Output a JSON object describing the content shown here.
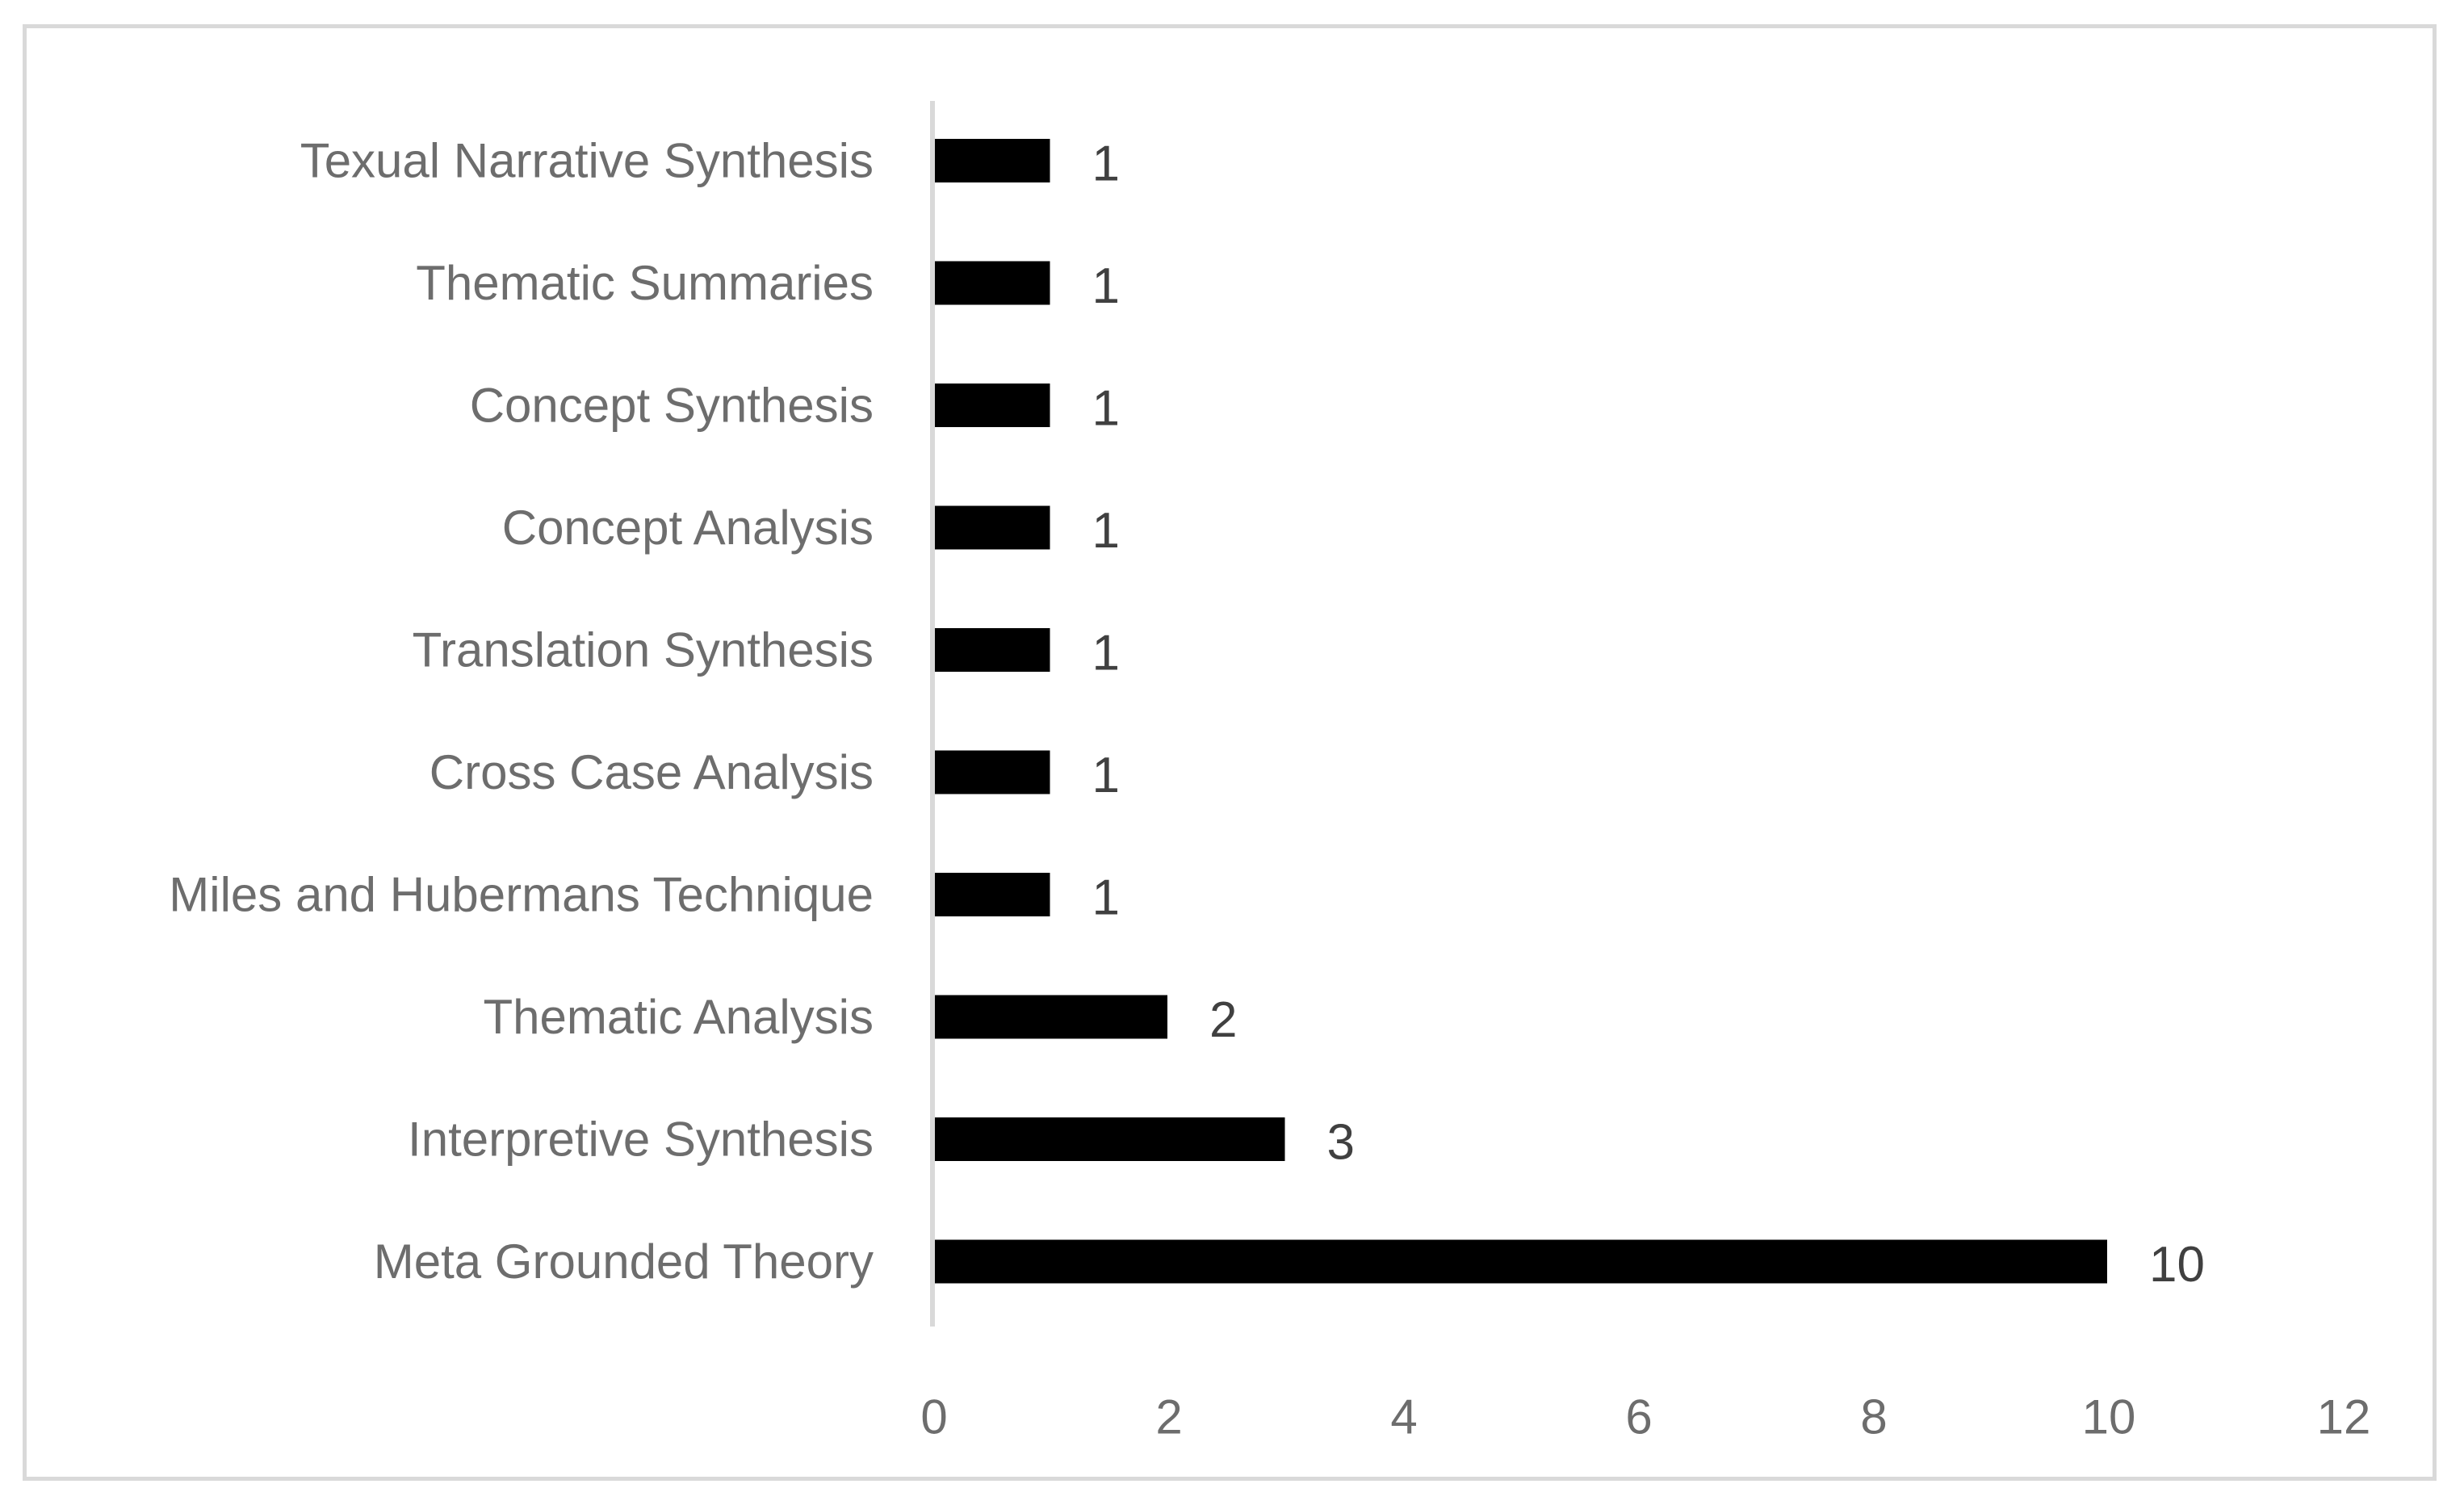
{
  "chart_data": {
    "type": "bar",
    "orientation": "horizontal",
    "categories": [
      "Texual Narrative Synthesis",
      "Thematic Summaries",
      "Concept Synthesis",
      "Concept Analysis",
      "Translation Synthesis",
      "Cross Case Analysis",
      "Miles and Hubermans Technique",
      "Thematic Analysis",
      "Interpretive Synthesis",
      "Meta Grounded Theory"
    ],
    "values": [
      1,
      1,
      1,
      1,
      1,
      1,
      1,
      2,
      3,
      10
    ],
    "data_labels": [
      "1",
      "1",
      "1",
      "1",
      "1",
      "1",
      "1",
      "2",
      "3",
      "10"
    ],
    "xlim": [
      0,
      12
    ],
    "xticks": [
      "0",
      "2",
      "4",
      "6",
      "8",
      "10",
      "12"
    ],
    "xtick_values": [
      0,
      2,
      4,
      6,
      8,
      10,
      12
    ],
    "title": "",
    "xlabel": "",
    "ylabel": "",
    "grid": false,
    "legend": "none",
    "colors": {
      "bar": "#000000",
      "axis": "#d9d9d9",
      "category_text": "#6d6d6d",
      "data_label_text": "#404040",
      "frame": "#d9d9d9"
    }
  }
}
